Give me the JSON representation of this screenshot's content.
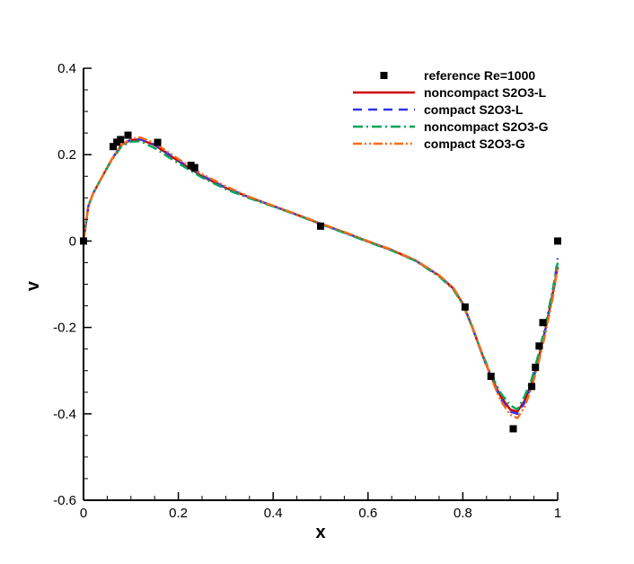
{
  "chart_data": {
    "type": "line",
    "title": "",
    "xlabel": "x",
    "ylabel": "v",
    "xlim": [
      0,
      1
    ],
    "ylim": [
      -0.6,
      0.4
    ],
    "x_ticks": [
      0,
      0.2,
      0.4,
      0.6,
      0.8,
      1
    ],
    "x_tick_labels": [
      "0",
      "0.2",
      "0.4",
      "0.6",
      "0.8",
      "1"
    ],
    "y_ticks": [
      -0.6,
      -0.4,
      -0.2,
      0,
      0.2,
      0.4
    ],
    "y_tick_labels": [
      "-0.6",
      "-0.4",
      "-0.2",
      "0",
      "0.2",
      "0.4"
    ],
    "grid": false,
    "legend_position": "top-right",
    "series": [
      {
        "name": "reference Re=1000",
        "kind": "markers",
        "marker": "square",
        "color": "#000000",
        "x": [
          0.0,
          0.0625,
          0.0703,
          0.0781,
          0.0938,
          0.1563,
          0.2266,
          0.2344,
          0.5,
          0.8047,
          0.8594,
          0.9063,
          0.9453,
          0.9531,
          0.9609,
          0.9688,
          1.0
        ],
        "y": [
          0.0,
          0.2187,
          0.2288,
          0.2349,
          0.245,
          0.2284,
          0.1752,
          0.17,
          0.0345,
          -0.1527,
          -0.3131,
          -0.4346,
          -0.3366,
          -0.2923,
          -0.243,
          -0.1888,
          0.0
        ]
      },
      {
        "name": "noncompact S2O3-L",
        "kind": "line",
        "dash": "solid",
        "color": "#cc0000",
        "x": [
          0,
          0.01,
          0.02,
          0.04,
          0.06,
          0.08,
          0.1,
          0.12,
          0.15,
          0.2,
          0.25,
          0.3,
          0.35,
          0.4,
          0.45,
          0.5,
          0.55,
          0.6,
          0.65,
          0.7,
          0.75,
          0.78,
          0.8,
          0.82,
          0.84,
          0.86,
          0.88,
          0.9,
          0.915,
          0.93,
          0.945,
          0.96,
          0.975,
          0.99,
          1.0
        ],
        "y": [
          0,
          0.08,
          0.11,
          0.15,
          0.19,
          0.222,
          0.234,
          0.235,
          0.222,
          0.185,
          0.15,
          0.123,
          0.101,
          0.081,
          0.061,
          0.04,
          0.02,
          -0.001,
          -0.021,
          -0.045,
          -0.08,
          -0.11,
          -0.145,
          -0.2,
          -0.26,
          -0.315,
          -0.36,
          -0.39,
          -0.395,
          -0.37,
          -0.33,
          -0.27,
          -0.2,
          -0.12,
          -0.06
        ]
      },
      {
        "name": "compact S2O3-L",
        "kind": "line",
        "dash": "dash",
        "color": "#3333ee",
        "x": [
          0,
          0.01,
          0.02,
          0.04,
          0.06,
          0.08,
          0.1,
          0.12,
          0.15,
          0.2,
          0.25,
          0.3,
          0.35,
          0.4,
          0.45,
          0.5,
          0.55,
          0.6,
          0.65,
          0.7,
          0.75,
          0.78,
          0.8,
          0.82,
          0.84,
          0.86,
          0.88,
          0.9,
          0.915,
          0.93,
          0.945,
          0.96,
          0.975,
          0.99,
          1.0
        ],
        "y": [
          0,
          0.08,
          0.11,
          0.15,
          0.19,
          0.222,
          0.235,
          0.236,
          0.223,
          0.187,
          0.152,
          0.124,
          0.101,
          0.081,
          0.061,
          0.04,
          0.02,
          -0.001,
          -0.021,
          -0.045,
          -0.08,
          -0.11,
          -0.145,
          -0.2,
          -0.26,
          -0.318,
          -0.365,
          -0.395,
          -0.4,
          -0.375,
          -0.335,
          -0.27,
          -0.2,
          -0.12,
          -0.04
        ]
      },
      {
        "name": "noncompact S2O3-G",
        "kind": "line",
        "dash": "dashdot",
        "color": "#00a65a",
        "x": [
          0,
          0.01,
          0.02,
          0.04,
          0.06,
          0.08,
          0.1,
          0.12,
          0.15,
          0.2,
          0.25,
          0.3,
          0.35,
          0.4,
          0.45,
          0.5,
          0.55,
          0.6,
          0.65,
          0.7,
          0.75,
          0.78,
          0.8,
          0.82,
          0.84,
          0.86,
          0.88,
          0.9,
          0.915,
          0.93,
          0.945,
          0.96,
          0.975,
          0.99,
          1.0
        ],
        "y": [
          0,
          0.08,
          0.11,
          0.15,
          0.188,
          0.219,
          0.23,
          0.231,
          0.215,
          0.18,
          0.147,
          0.12,
          0.099,
          0.08,
          0.06,
          0.039,
          0.019,
          -0.002,
          -0.022,
          -0.046,
          -0.082,
          -0.112,
          -0.147,
          -0.2,
          -0.258,
          -0.31,
          -0.352,
          -0.38,
          -0.39,
          -0.36,
          -0.32,
          -0.26,
          -0.19,
          -0.11,
          -0.05
        ]
      },
      {
        "name": "compact S2O3-G",
        "kind": "line",
        "dash": "dashdotdot",
        "color": "#ff6a13",
        "x": [
          0,
          0.01,
          0.02,
          0.04,
          0.06,
          0.08,
          0.1,
          0.12,
          0.15,
          0.2,
          0.25,
          0.3,
          0.35,
          0.4,
          0.45,
          0.5,
          0.55,
          0.6,
          0.65,
          0.7,
          0.75,
          0.78,
          0.8,
          0.82,
          0.84,
          0.86,
          0.88,
          0.9,
          0.915,
          0.93,
          0.945,
          0.96,
          0.975,
          0.99,
          1.0
        ],
        "y": [
          0,
          0.08,
          0.11,
          0.15,
          0.19,
          0.222,
          0.237,
          0.24,
          0.227,
          0.19,
          0.155,
          0.127,
          0.102,
          0.082,
          0.062,
          0.041,
          0.021,
          0.0,
          -0.02,
          -0.044,
          -0.079,
          -0.108,
          -0.143,
          -0.198,
          -0.258,
          -0.318,
          -0.37,
          -0.402,
          -0.41,
          -0.385,
          -0.34,
          -0.28,
          -0.21,
          -0.13,
          -0.06
        ]
      }
    ]
  }
}
